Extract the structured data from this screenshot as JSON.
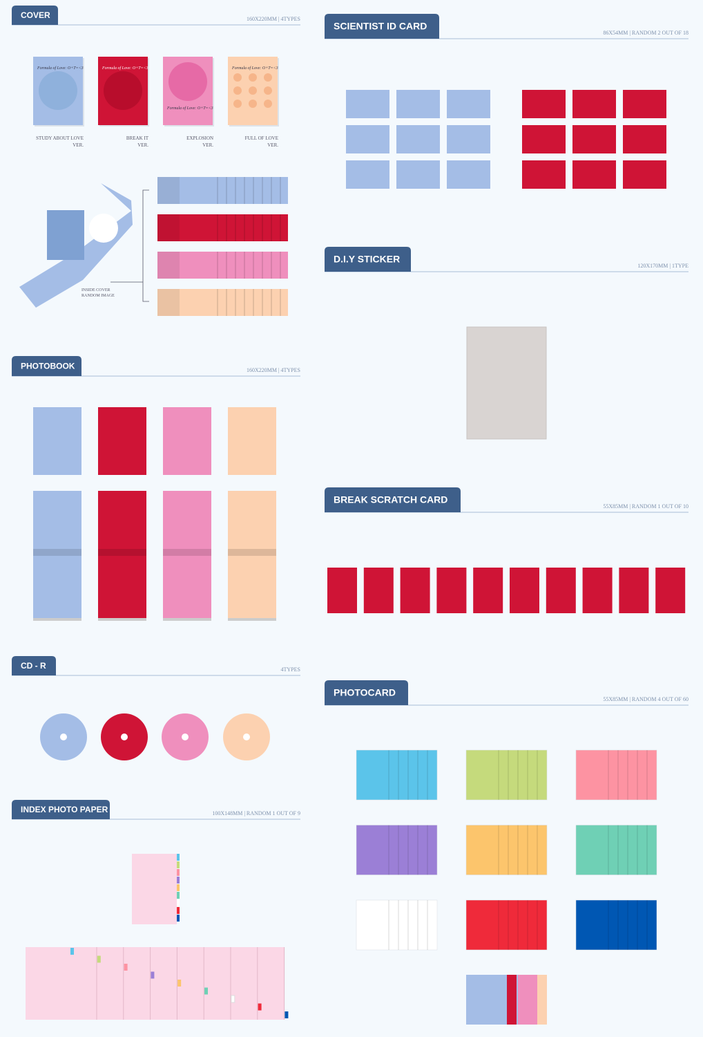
{
  "sections": {
    "cover": {
      "title": "COVER",
      "spec": "160X220MM | 4TYPES",
      "cover_text": "Formula of Love: O+T=<3",
      "versions": [
        [
          "STUDY ABOUT LOVE",
          "VER."
        ],
        [
          "BREAK IT",
          "VER."
        ],
        [
          "EXPLOSION",
          "VER."
        ],
        [
          "FULL OF LOVE",
          "VER."
        ]
      ],
      "inside_note": [
        "INSIDE COVER",
        "RANDOM IMAGE"
      ]
    },
    "photobook": {
      "title": "PHOTOBOOK",
      "spec": "160X220MM | 4TYPES"
    },
    "cd": {
      "title": "CD - R",
      "spec": "4TYPES"
    },
    "index": {
      "title": "INDEX PHOTO PAPER",
      "spec": "100X148MM | RANDOM 1 OUT OF 9"
    },
    "id_card": {
      "title": "SCIENTIST ID CARD",
      "spec": "86X54MM | RANDOM 2 OUT OF 18"
    },
    "sticker": {
      "title": "D.I.Y STICKER",
      "spec": "120X170MM | 1TYPE"
    },
    "scratch": {
      "title": "BREAK SCRATCH CARD",
      "spec": "55X85MM | RANDOM 1 OUT OF 10"
    },
    "photocard": {
      "title": "PHOTOCARD",
      "spec": "55X85MM | RANDOM 4 OUT OF 60"
    }
  }
}
